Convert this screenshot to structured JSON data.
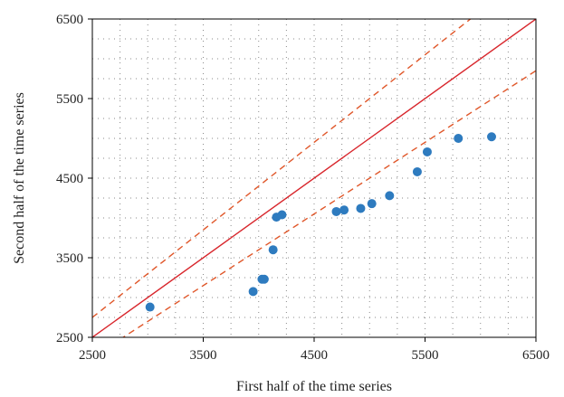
{
  "chart_data": {
    "type": "scatter",
    "title": "",
    "xlabel": "First half of the time series",
    "ylabel": "Second half of the time series",
    "xlim": [
      2500,
      6500
    ],
    "ylim": [
      2500,
      6500
    ],
    "xticks": [
      2500,
      3500,
      4500,
      5500,
      6500
    ],
    "yticks": [
      2500,
      3500,
      4500,
      5500,
      6500
    ],
    "minor_step": 250,
    "grid": true,
    "legend": "none",
    "colors": {
      "points": "#2e7bbf",
      "reference_line": "#d8262c",
      "band_lines": "#e0572a",
      "grid": "#8a8a8a",
      "axis": "#000000"
    },
    "points": [
      {
        "x": 3020,
        "y": 2880
      },
      {
        "x": 3950,
        "y": 3075
      },
      {
        "x": 4030,
        "y": 3230
      },
      {
        "x": 4050,
        "y": 3230
      },
      {
        "x": 4130,
        "y": 3600
      },
      {
        "x": 4160,
        "y": 4010
      },
      {
        "x": 4210,
        "y": 4040
      },
      {
        "x": 4700,
        "y": 4080
      },
      {
        "x": 4770,
        "y": 4100
      },
      {
        "x": 4920,
        "y": 4120
      },
      {
        "x": 5020,
        "y": 4180
      },
      {
        "x": 5180,
        "y": 4280
      },
      {
        "x": 5430,
        "y": 4580
      },
      {
        "x": 5520,
        "y": 4830
      },
      {
        "x": 5800,
        "y": 5000
      },
      {
        "x": 6100,
        "y": 5020
      }
    ],
    "reference_lines": [
      {
        "kind": "identity",
        "style": "solid",
        "slope": 1.0
      },
      {
        "kind": "upper",
        "style": "dashed",
        "slope": 1.1
      },
      {
        "kind": "lower",
        "style": "dashed",
        "slope": 0.9
      }
    ]
  }
}
